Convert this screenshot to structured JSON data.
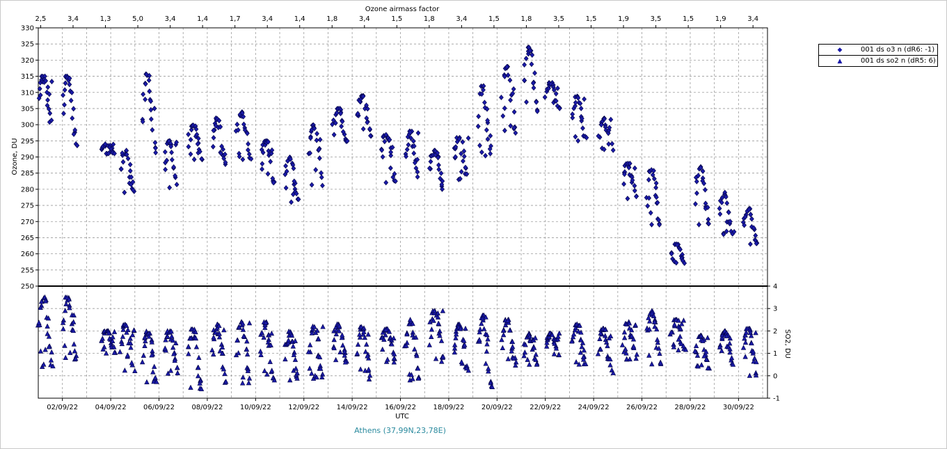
{
  "chart_data": {
    "type": "scatter",
    "top_axis_title": "Ozone airmass factor",
    "top_axis_labels": [
      "2,5",
      "3,4",
      "1,3",
      "5,0",
      "3,4",
      "1,4",
      "1,7",
      "3,4",
      "1,4",
      "1,8",
      "3,4",
      "1,5",
      "1,8",
      "3,4",
      "1,5",
      "1,8",
      "3,5",
      "1,5",
      "1,9",
      "3,5",
      "1,5",
      "1,9",
      "3,4"
    ],
    "xlabel": "UTC",
    "x_ticks": [
      "02/09/22",
      "04/09/22",
      "06/09/22",
      "08/09/22",
      "10/09/22",
      "12/09/22",
      "14/09/22",
      "16/09/22",
      "18/09/22",
      "20/09/22",
      "22/09/22",
      "24/09/22",
      "26/09/22",
      "28/09/22",
      "30/09/22"
    ],
    "xlim": [
      1,
      31.2
    ],
    "footer": "Athens (37,99N,23,78E)",
    "ozone_panel": {
      "ylabel": "Ozone, DU",
      "ylim": [
        250,
        330
      ],
      "y_ticks": [
        250,
        255,
        260,
        265,
        270,
        275,
        280,
        285,
        290,
        295,
        300,
        305,
        310,
        315,
        320,
        325,
        330
      ]
    },
    "so2_panel": {
      "ylabel": "SO2, DU",
      "ylim": [
        -1,
        4
      ],
      "y_ticks": [
        -1,
        0,
        1,
        2,
        3,
        4
      ]
    },
    "series": [
      {
        "name": "001 ds o3  n (dR6: -1)",
        "marker": "diamond",
        "color": "#1a1aa8",
        "panel": "ozone",
        "days": [
          {
            "day": 1.3,
            "range": [
              300,
              315
            ]
          },
          {
            "day": 2.3,
            "range": [
              293,
              315
            ]
          },
          {
            "day": 3.9,
            "range": [
              291,
              294
            ]
          },
          {
            "day": 4.7,
            "range": [
              279,
              292
            ]
          },
          {
            "day": 5.6,
            "range": [
              291,
              316
            ]
          },
          {
            "day": 6.5,
            "range": [
              280,
              295
            ]
          },
          {
            "day": 7.5,
            "range": [
              289,
              300
            ]
          },
          {
            "day": 8.5,
            "range": [
              287,
              302
            ]
          },
          {
            "day": 9.5,
            "range": [
              289,
              304
            ]
          },
          {
            "day": 10.5,
            "range": [
              281,
              295
            ]
          },
          {
            "day": 11.5,
            "range": [
              276,
              290
            ]
          },
          {
            "day": 12.5,
            "range": [
              281,
              300
            ]
          },
          {
            "day": 13.5,
            "range": [
              294,
              305
            ]
          },
          {
            "day": 14.5,
            "range": [
              296,
              309
            ]
          },
          {
            "day": 15.5,
            "range": [
              282,
              297
            ]
          },
          {
            "day": 16.5,
            "range": [
              283,
              298
            ]
          },
          {
            "day": 17.5,
            "range": [
              280,
              292
            ]
          },
          {
            "day": 18.5,
            "range": [
              283,
              296
            ]
          },
          {
            "day": 19.5,
            "range": [
              289,
              312
            ]
          },
          {
            "day": 20.5,
            "range": [
              297,
              318
            ]
          },
          {
            "day": 21.4,
            "range": [
              304,
              324
            ]
          },
          {
            "day": 22.3,
            "range": [
              305,
              313
            ]
          },
          {
            "day": 23.4,
            "range": [
              295,
              309
            ]
          },
          {
            "day": 24.5,
            "range": [
              292,
              302
            ]
          },
          {
            "day": 25.5,
            "range": [
              277,
              288
            ]
          },
          {
            "day": 26.5,
            "range": [
              269,
              286
            ]
          },
          {
            "day": 27.5,
            "range": [
              257,
              263
            ]
          },
          {
            "day": 28.5,
            "range": [
              269,
              287
            ]
          },
          {
            "day": 29.5,
            "range": [
              266,
              279
            ]
          },
          {
            "day": 30.5,
            "range": [
              263,
              274
            ]
          }
        ]
      },
      {
        "name": "001 ds so2 n (dR5: 6)",
        "marker": "triangle",
        "color": "#1a1aa8",
        "panel": "so2",
        "days": [
          {
            "day": 1.3,
            "range": [
              0.4,
              3.5
            ]
          },
          {
            "day": 2.3,
            "range": [
              0.6,
              3.5
            ]
          },
          {
            "day": 3.9,
            "range": [
              1.0,
              2.0
            ]
          },
          {
            "day": 4.7,
            "range": [
              0.2,
              2.3
            ]
          },
          {
            "day": 5.6,
            "range": [
              -0.4,
              2.0
            ]
          },
          {
            "day": 6.5,
            "range": [
              0.1,
              2.0
            ]
          },
          {
            "day": 7.5,
            "range": [
              -0.6,
              2.1
            ]
          },
          {
            "day": 8.5,
            "range": [
              -0.4,
              2.3
            ]
          },
          {
            "day": 9.5,
            "range": [
              -0.5,
              2.4
            ]
          },
          {
            "day": 10.5,
            "range": [
              -0.2,
              2.4
            ]
          },
          {
            "day": 11.5,
            "range": [
              -0.2,
              2.0
            ]
          },
          {
            "day": 12.5,
            "range": [
              -0.2,
              2.2
            ]
          },
          {
            "day": 13.5,
            "range": [
              0.6,
              2.3
            ]
          },
          {
            "day": 14.5,
            "range": [
              -0.2,
              2.2
            ]
          },
          {
            "day": 15.5,
            "range": [
              0.6,
              2.1
            ]
          },
          {
            "day": 16.5,
            "range": [
              -0.2,
              2.5
            ]
          },
          {
            "day": 17.5,
            "range": [
              0.5,
              2.9
            ]
          },
          {
            "day": 18.5,
            "range": [
              0.1,
              2.3
            ]
          },
          {
            "day": 19.5,
            "range": [
              -0.5,
              2.7
            ]
          },
          {
            "day": 20.5,
            "range": [
              0.4,
              2.5
            ]
          },
          {
            "day": 21.4,
            "range": [
              0.5,
              1.9
            ]
          },
          {
            "day": 22.3,
            "range": [
              0.8,
              1.9
            ]
          },
          {
            "day": 23.4,
            "range": [
              0.5,
              2.3
            ]
          },
          {
            "day": 24.5,
            "range": [
              0.1,
              2.1
            ]
          },
          {
            "day": 25.5,
            "range": [
              0.7,
              2.4
            ]
          },
          {
            "day": 26.5,
            "range": [
              0.5,
              2.9
            ]
          },
          {
            "day": 27.5,
            "range": [
              1.1,
              2.5
            ]
          },
          {
            "day": 28.5,
            "range": [
              0.3,
              1.8
            ]
          },
          {
            "day": 29.5,
            "range": [
              0.5,
              2.0
            ]
          },
          {
            "day": 30.5,
            "range": [
              0.0,
              2.1
            ]
          }
        ]
      }
    ]
  }
}
